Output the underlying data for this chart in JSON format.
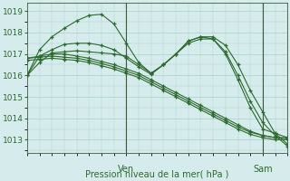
{
  "background_color": "#d6ecec",
  "grid_color": "#aacece",
  "line_color": "#2d6a2d",
  "marker_color": "#2d6a2d",
  "title": "Pression niveau de la mer( hPa )",
  "ven_label": "Ven",
  "sam_label": "Sam",
  "ylim": [
    1012.4,
    1019.4
  ],
  "yticks": [
    1013,
    1014,
    1015,
    1016,
    1017,
    1018,
    1019
  ],
  "series": [
    [
      1016.0,
      1016.6,
      1017.05,
      1017.1,
      1017.15,
      1017.1,
      1017.05,
      1017.0,
      1016.9,
      1016.5,
      1016.1,
      1016.5,
      1017.0,
      1017.6,
      1017.8,
      1017.8,
      1017.4,
      1016.5,
      1015.3,
      1014.3,
      1013.3,
      1012.8
    ],
    [
      1016.8,
      1016.9,
      1017.0,
      1017.0,
      1016.9,
      1016.8,
      1016.65,
      1016.5,
      1016.3,
      1016.1,
      1015.8,
      1015.5,
      1015.2,
      1014.9,
      1014.6,
      1014.3,
      1014.0,
      1013.7,
      1013.4,
      1013.2,
      1013.1,
      1013.1
    ],
    [
      1016.8,
      1016.85,
      1016.9,
      1016.85,
      1016.8,
      1016.7,
      1016.55,
      1016.4,
      1016.2,
      1016.0,
      1015.7,
      1015.4,
      1015.1,
      1014.8,
      1014.5,
      1014.2,
      1013.9,
      1013.6,
      1013.35,
      1013.2,
      1013.1,
      1013.05
    ],
    [
      1016.0,
      1017.2,
      1017.8,
      1018.2,
      1018.55,
      1018.8,
      1018.85,
      1018.4,
      1017.5,
      1016.6,
      1016.1,
      1016.5,
      1017.0,
      1017.6,
      1017.8,
      1017.7,
      1017.0,
      1015.8,
      1014.5,
      1013.5,
      1013.3,
      1013.1
    ],
    [
      1016.0,
      1016.9,
      1017.2,
      1017.45,
      1017.5,
      1017.5,
      1017.4,
      1017.2,
      1016.8,
      1016.4,
      1016.05,
      1016.5,
      1017.0,
      1017.5,
      1017.7,
      1017.7,
      1017.1,
      1016.0,
      1014.8,
      1013.8,
      1013.2,
      1012.7
    ],
    [
      1016.7,
      1016.75,
      1016.8,
      1016.75,
      1016.7,
      1016.6,
      1016.45,
      1016.3,
      1016.1,
      1015.9,
      1015.6,
      1015.3,
      1015.0,
      1014.7,
      1014.4,
      1014.1,
      1013.8,
      1013.5,
      1013.25,
      1013.1,
      1013.0,
      1013.0
    ]
  ],
  "n_points": 22,
  "ven_x_pos": 0.365,
  "sam_x_pos": 0.79,
  "ven_x": 8,
  "sam_x": 19,
  "xlim": [
    0,
    21
  ]
}
